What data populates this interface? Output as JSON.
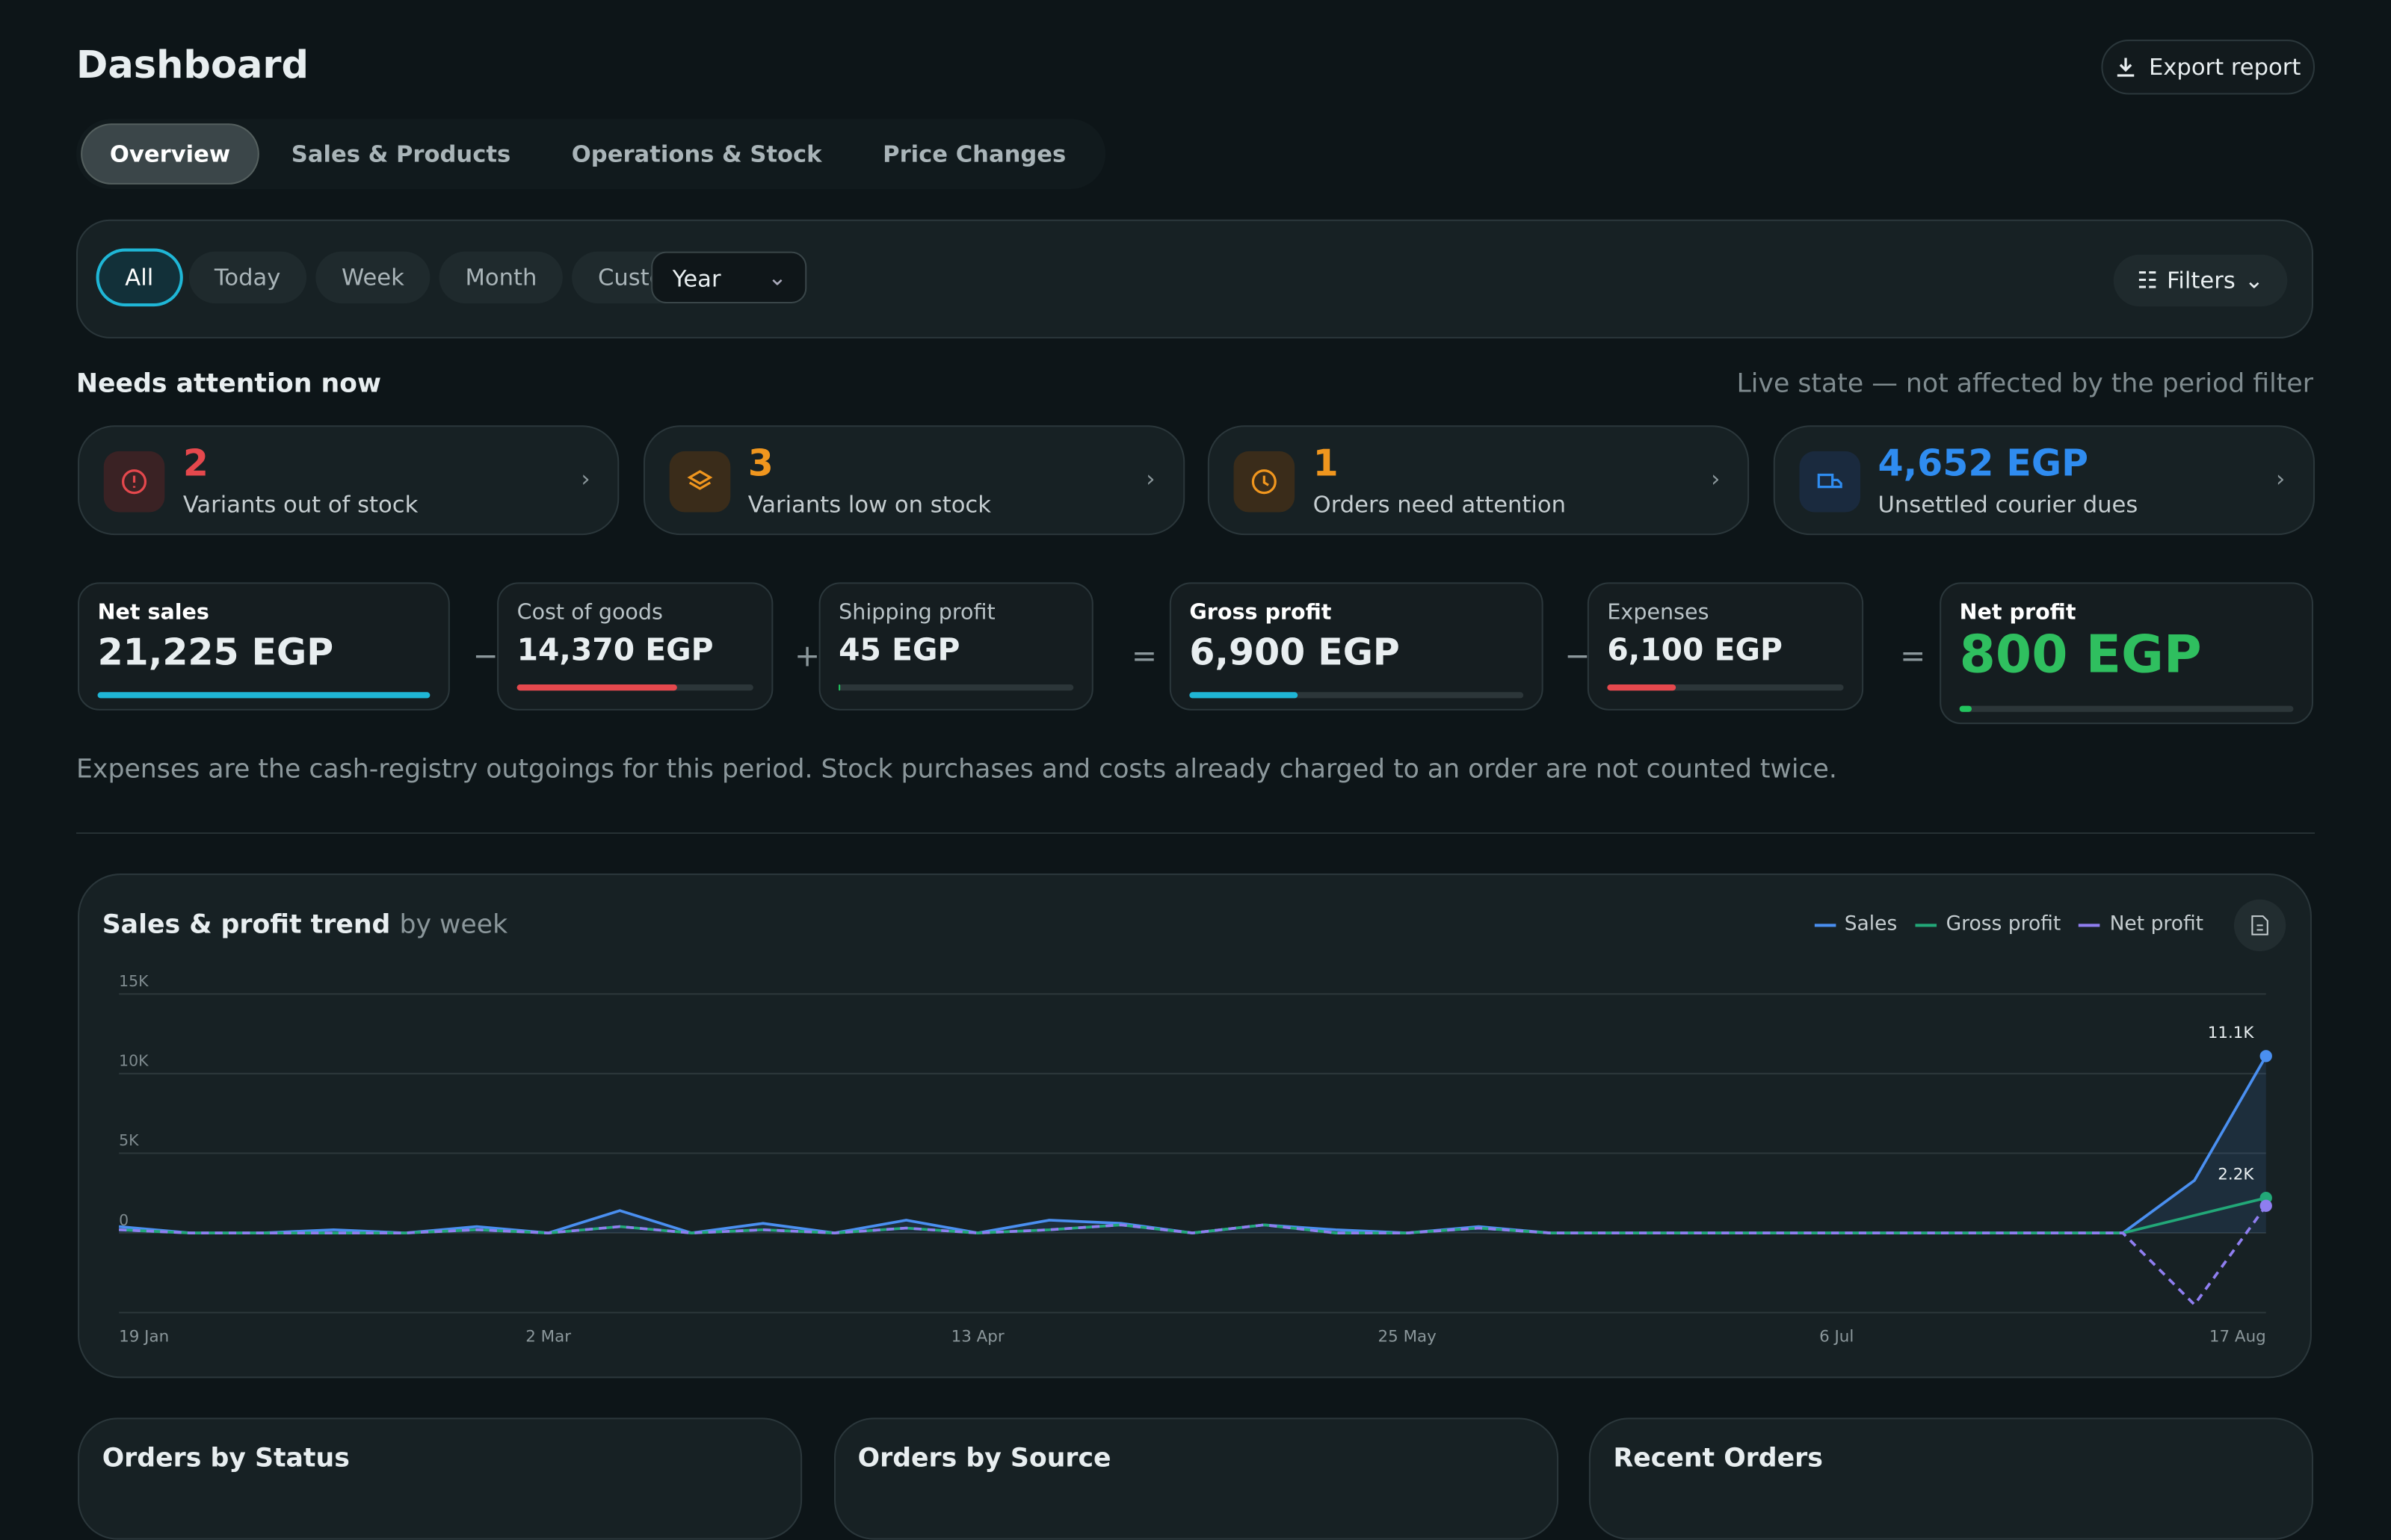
{
  "header": {
    "title": "Dashboard",
    "export": "Export report"
  },
  "tabs": [
    "Overview",
    "Sales & Products",
    "Operations & Stock",
    "Price Changes"
  ],
  "periods": [
    "All",
    "Today",
    "Week",
    "Month",
    "Custom"
  ],
  "period_select": "Year",
  "filters": "Filters",
  "attention": {
    "title": "Needs attention now",
    "note": "Live state — not affected by the period filter",
    "cards": [
      {
        "count": "2",
        "text": "Variants out of stock"
      },
      {
        "count": "3",
        "text": "Variants low on stock"
      },
      {
        "count": "1",
        "text": "Orders need attention"
      },
      {
        "count": "4,652 EGP",
        "text": "Unsettled courier dues"
      }
    ]
  },
  "metrics": [
    {
      "label": "Net sales",
      "value": 21225,
      "value_label": "21,225 EGP"
    },
    {
      "op": "−"
    },
    {
      "label": "Cost of goods",
      "value": 14370,
      "value_label": "14,370 EGP"
    },
    {
      "op": "+"
    },
    {
      "label": "Shipping profit",
      "value": 45,
      "value_label": "45 EGP"
    },
    {
      "op": "="
    },
    {
      "label": "Gross profit",
      "value": 6900,
      "value_label": "6,900 EGP"
    },
    {
      "op": "−"
    },
    {
      "label": "Expenses",
      "value": 6100,
      "value_label": "6,100 EGP"
    },
    {
      "op": "="
    },
    {
      "label": "Net profit",
      "value": 800,
      "value_label": "800 EGP"
    }
  ],
  "metrics_note": "Expenses are the cash-registry outgoings for this period. Stock purchases and costs already charged to an order are not counted twice.",
  "chart_data": {
    "type": "line",
    "title": "Sales & profit trend",
    "subtitle": "by week",
    "categories": [
      "19 Jan",
      null,
      null,
      null,
      null,
      null,
      "2 Mar",
      null,
      null,
      null,
      null,
      null,
      "13 Apr",
      null,
      null,
      null,
      null,
      null,
      "25 May",
      null,
      null,
      null,
      null,
      null,
      "6 Jul",
      null,
      null,
      null,
      null,
      null,
      "17 Aug"
    ],
    "series": [
      {
        "name": "Sales",
        "color": "#4a8ff0",
        "values": [
          400,
          0,
          0,
          200,
          0,
          400,
          0,
          1400,
          0,
          600,
          0,
          800,
          0,
          800,
          600,
          0,
          500,
          200,
          0,
          400,
          0,
          0,
          0,
          0,
          0,
          0,
          0,
          0,
          0,
          3300,
          11100
        ],
        "value_labels": [
          null,
          null,
          null,
          null,
          null,
          null,
          null,
          null,
          null,
          null,
          null,
          null,
          null,
          null,
          null,
          null,
          null,
          null,
          null,
          null,
          null,
          null,
          null,
          null,
          null,
          null,
          null,
          null,
          null,
          null,
          "11.1K"
        ]
      },
      {
        "name": "Gross profit",
        "color": "#22a878",
        "values": [
          200,
          0,
          0,
          0,
          0,
          200,
          0,
          400,
          0,
          200,
          0,
          300,
          0,
          200,
          500,
          0,
          500,
          0,
          0,
          300,
          0,
          0,
          0,
          0,
          0,
          0,
          0,
          0,
          0,
          1100,
          2200
        ],
        "value_labels": [
          null,
          null,
          null,
          null,
          null,
          null,
          null,
          null,
          null,
          null,
          null,
          null,
          null,
          null,
          null,
          null,
          null,
          null,
          null,
          null,
          null,
          null,
          null,
          null,
          null,
          null,
          null,
          null,
          null,
          null,
          "2.2K"
        ]
      },
      {
        "name": "Net profit",
        "color": "#8f7ef0",
        "dashed": true,
        "values": [
          200,
          0,
          0,
          0,
          0,
          200,
          0,
          400,
          0,
          200,
          0,
          300,
          0,
          200,
          500,
          0,
          500,
          0,
          0,
          300,
          0,
          0,
          0,
          0,
          0,
          0,
          0,
          0,
          0,
          -4500,
          1700
        ]
      }
    ],
    "ylim": [
      -5000,
      15000
    ],
    "yticks": [
      0,
      {
        "value": 5000,
        "label": "5K"
      },
      {
        "value": 10000,
        "label": "10K"
      },
      {
        "value": 15000,
        "label": "15K"
      }
    ],
    "grid": true
  },
  "panels": [
    "Orders by Status",
    "Orders by Source",
    "Recent Orders"
  ]
}
